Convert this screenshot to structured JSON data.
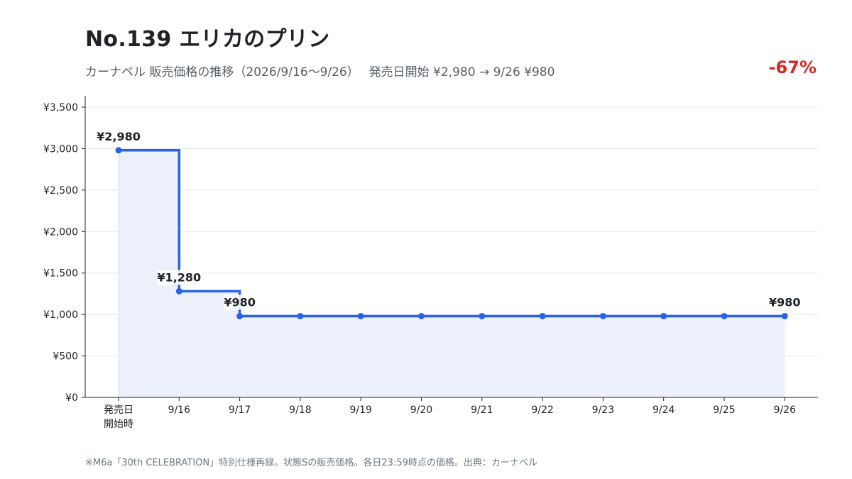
{
  "header": {
    "title": "No.139 エリカのプリン",
    "subtitle": "カーナベル 販売価格の推移（2026/9/16〜9/26）　 発売日開始 ¥2,980 → 9/26 ¥980",
    "change": "-67%"
  },
  "footnote": "※M6a「30th CELEBRATION」特別仕様再録。状態Sの販売価格。各日23:59時点の価格。出典：カーナベル",
  "colors": {
    "line": "#2962e6",
    "area": "#ebf0fb",
    "grid": "#e6e8eb",
    "axis": "#1f2328",
    "change": "#d62828"
  },
  "chart_data": {
    "type": "line",
    "step": "post",
    "categories": [
      [
        "発売日",
        "開始時"
      ],
      "9/16",
      "9/17",
      "9/18",
      "9/19",
      "9/20",
      "9/21",
      "9/22",
      "9/23",
      "9/24",
      "9/25",
      "9/26"
    ],
    "values": [
      2980,
      1280,
      980,
      980,
      980,
      980,
      980,
      980,
      980,
      980,
      980,
      980
    ],
    "ylim": [
      0,
      3500
    ],
    "yticks": [
      0,
      500,
      1000,
      1500,
      2000,
      2500,
      3000,
      3500
    ],
    "ytick_labels": [
      "¥0",
      "¥500",
      "¥1,000",
      "¥1,500",
      "¥2,000",
      "¥2,500",
      "¥3,000",
      "¥3,500"
    ],
    "grid": true,
    "annotations": [
      {
        "index": 0,
        "text": "¥2,980"
      },
      {
        "index": 1,
        "text": "¥1,280"
      },
      {
        "index": 2,
        "text": "¥980"
      },
      {
        "index": 11,
        "text": "¥980"
      }
    ]
  }
}
